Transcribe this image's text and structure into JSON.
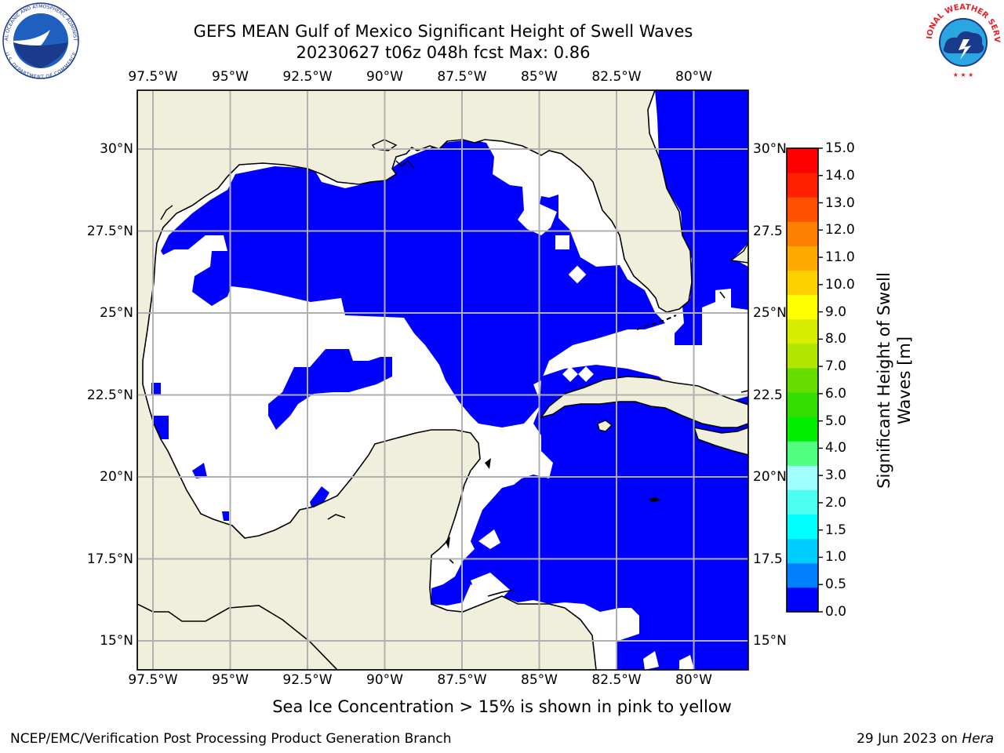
{
  "header": {
    "title_line1": "GEFS MEAN Gulf of Mexico Significant Height of Swell Waves",
    "title_line2": "20230627 t06z 048h fcst   Max: 0.86"
  },
  "logos": {
    "noara": "NOAA",
    "noaa_ring_top": "NATIONAL OCEANIC AND ATMOSPHERIC ADMINISTRATION",
    "noaa_ring_bottom": "U.S. DEPARTMENT OF COMMERCE",
    "nws_ring": "NATIONAL WEATHER SERVICE"
  },
  "map": {
    "lon_ticks": [
      "97.5°W",
      "95°W",
      "92.5°W",
      "90°W",
      "87.5°W",
      "85°W",
      "82.5°W",
      "80°W"
    ],
    "lat_ticks": [
      "30°N",
      "27.5°N",
      "25°N",
      "22.5°N",
      "20°N",
      "17.5°N",
      "15°N"
    ],
    "lat_ticks_right": [
      "30°N",
      "27.5",
      "25°N",
      "22.5",
      "20°N",
      "17.5",
      "15°N"
    ],
    "colors": {
      "land": "#efefdc",
      "water_low": "#0000ff",
      "water_mid": "#0080ff",
      "grid": "#b0b0b0"
    }
  },
  "colorbar": {
    "ticks": [
      "15.0",
      "14.0",
      "13.0",
      "12.0",
      "11.0",
      "10.0",
      "9.0",
      "8.0",
      "7.0",
      "6.0",
      "5.0",
      "4.0",
      "3.0",
      "2.0",
      "1.5",
      "1.0",
      "0.5",
      "0.0"
    ],
    "colors": [
      "#0000ff",
      "#0080ff",
      "#00ccff",
      "#00ffff",
      "#4dfff0",
      "#a0ffff",
      "#50ff80",
      "#00ee00",
      "#33dd00",
      "#66dd00",
      "#b0e600",
      "#d8ee00",
      "#ffff00",
      "#ffd000",
      "#ffaa00",
      "#ff8000",
      "#ff5000",
      "#ff2000",
      "#ff0000"
    ],
    "label": "Significant Height of Swell Waves [m]",
    "label_line1": "Significant Height of Swell",
    "label_line2": "Waves [m]"
  },
  "note": "Sea Ice Concentration > 15% is shown in pink to yellow",
  "footer": {
    "left": "NCEP/EMC/Verification Post Processing Product Generation Branch",
    "right_date": "29 Jun 2023 on ",
    "right_host": "Hera"
  }
}
